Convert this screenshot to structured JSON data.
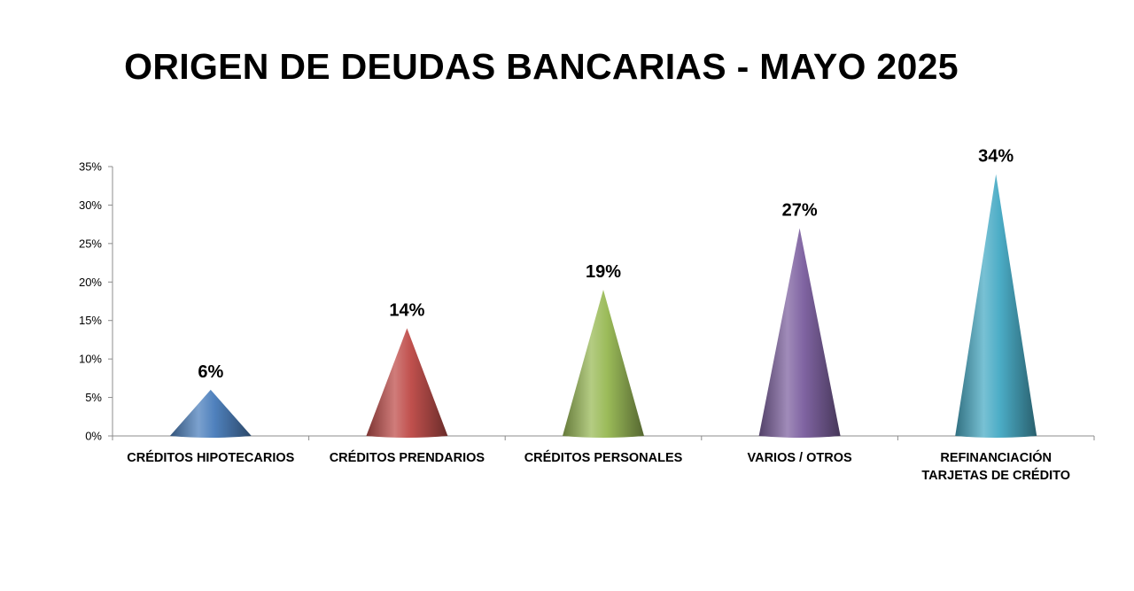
{
  "chart_data": {
    "type": "bar",
    "title": "ORIGEN DE DEUDAS BANCARIAS - MAYO 2025",
    "xlabel": "",
    "ylabel": "",
    "categories": [
      [
        "CRÉDITOS HIPOTECARIOS"
      ],
      [
        "CRÉDITOS PRENDARIOS"
      ],
      [
        "CRÉDITOS PERSONALES"
      ],
      [
        "VARIOS / OTROS"
      ],
      [
        "REFINANCIACIÓN",
        "TARJETAS DE CRÉDITO"
      ]
    ],
    "values": [
      6,
      14,
      19,
      27,
      34
    ],
    "data_labels": [
      "6%",
      "14%",
      "19%",
      "27%",
      "34%"
    ],
    "ylim": [
      0,
      35
    ],
    "yticks": [
      0,
      5,
      10,
      15,
      20,
      25,
      30,
      35
    ],
    "ytick_labels": [
      "0%",
      "5%",
      "10%",
      "15%",
      "20%",
      "25%",
      "30%",
      "35%"
    ],
    "mark_shape": "cone",
    "grid": false,
    "legend": "none",
    "colors": [
      "#4f81bd",
      "#c0504d",
      "#9bbb59",
      "#8064a2",
      "#4bacc6"
    ]
  }
}
